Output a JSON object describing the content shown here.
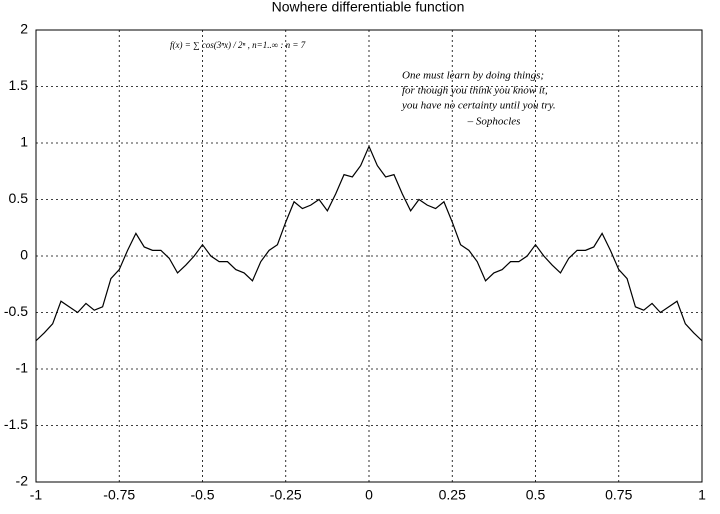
{
  "chart_data": {
    "type": "line",
    "title": "Nowhere differentiable function",
    "formula": "f(x) = ∑ cos(3ⁿx) / 2ⁿ , n=1..∞ : n = 7",
    "quote": [
      "One must learn by doing things;",
      "for though you think you know it,",
      "you have no certainty until you try."
    ],
    "attribution": "– Sophocles",
    "color": "#000000",
    "grid": true,
    "xlim": [
      -1,
      1
    ],
    "ylim": [
      -2,
      2
    ],
    "xticks": [
      -1,
      -0.75,
      -0.5,
      -0.25,
      0,
      0.25,
      0.5,
      0.75,
      1
    ],
    "yticks": [
      -2,
      -1.5,
      -1,
      -0.5,
      0,
      0.5,
      1,
      1.5,
      2
    ],
    "x": [
      -1,
      -0.975,
      -0.95,
      -0.925,
      -0.9,
      -0.875,
      -0.85,
      -0.825,
      -0.8,
      -0.775,
      -0.75,
      -0.725,
      -0.7,
      -0.675,
      -0.65,
      -0.625,
      -0.6,
      -0.575,
      -0.55,
      -0.525,
      -0.5,
      -0.475,
      -0.45,
      -0.425,
      -0.4,
      -0.375,
      -0.35,
      -0.325,
      -0.3,
      -0.275,
      -0.25,
      -0.225,
      -0.2,
      -0.175,
      -0.15,
      -0.125,
      -0.1,
      -0.075,
      -0.05,
      -0.025,
      0,
      0.025,
      0.05,
      0.075,
      0.1,
      0.125,
      0.15,
      0.175,
      0.2,
      0.225,
      0.25,
      0.275,
      0.3,
      0.325,
      0.35,
      0.375,
      0.4,
      0.425,
      0.45,
      0.475,
      0.5,
      0.525,
      0.55,
      0.575,
      0.6,
      0.625,
      0.65,
      0.675,
      0.7,
      0.725,
      0.75,
      0.775,
      0.8,
      0.825,
      0.85,
      0.875,
      0.9,
      0.925,
      0.95,
      0.975,
      1
    ],
    "values": [
      -0.75,
      -0.68,
      -0.6,
      -0.4,
      -0.45,
      -0.5,
      -0.42,
      -0.48,
      -0.45,
      -0.2,
      -0.12,
      0.05,
      0.2,
      0.08,
      0.05,
      0.05,
      -0.02,
      -0.15,
      -0.08,
      0.0,
      0.1,
      0.0,
      -0.05,
      -0.05,
      -0.12,
      -0.15,
      -0.22,
      -0.05,
      0.05,
      0.1,
      0.3,
      0.48,
      0.42,
      0.45,
      0.5,
      0.4,
      0.55,
      0.72,
      0.7,
      0.8,
      0.97,
      0.8,
      0.7,
      0.72,
      0.55,
      0.4,
      0.5,
      0.45,
      0.42,
      0.48,
      0.3,
      0.1,
      0.05,
      -0.05,
      -0.22,
      -0.15,
      -0.12,
      -0.05,
      -0.05,
      0.0,
      0.1,
      0.0,
      -0.08,
      -0.15,
      -0.02,
      0.05,
      0.05,
      0.08,
      0.2,
      0.05,
      -0.12,
      -0.2,
      -0.45,
      -0.48,
      -0.42,
      -0.5,
      -0.45,
      -0.4,
      -0.6,
      -0.68,
      -0.75
    ]
  }
}
